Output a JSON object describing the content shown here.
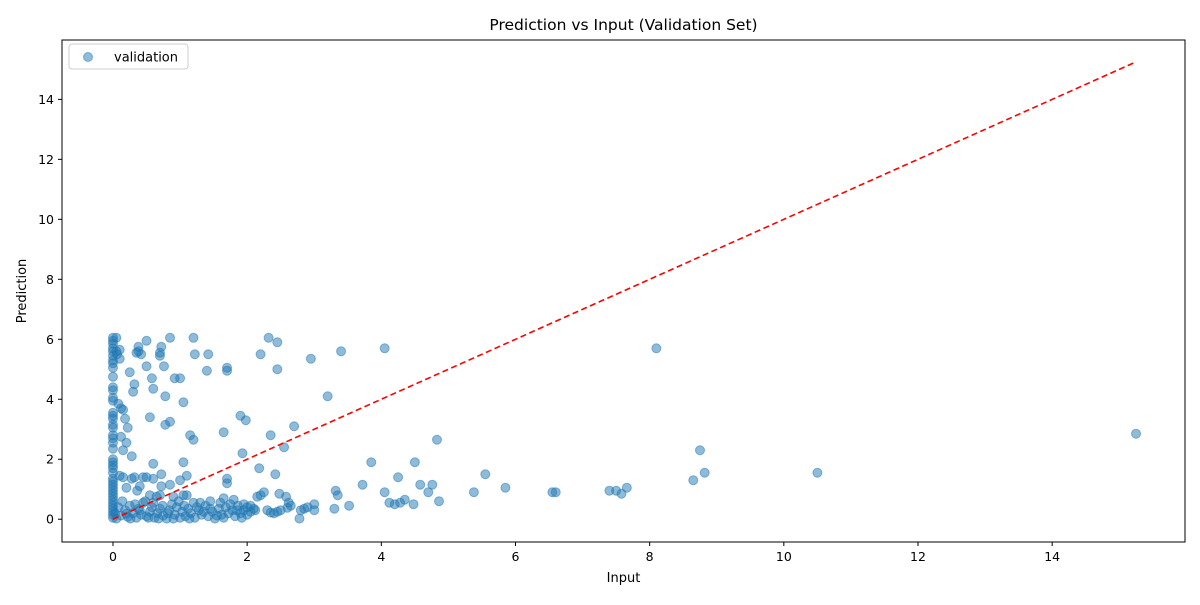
{
  "chart_data": {
    "type": "scatter",
    "title": "Prediction vs Input (Validation Set)",
    "xlabel": "Input",
    "ylabel": "Prediction",
    "xlim": [
      -0.76,
      15.98
    ],
    "ylim": [
      -0.76,
      15.98
    ],
    "xticks": [
      0,
      2,
      4,
      6,
      8,
      10,
      12,
      14
    ],
    "yticks": [
      0,
      2,
      4,
      6,
      8,
      10,
      12,
      14
    ],
    "grid": false,
    "legend": {
      "placement": "top-left",
      "entries": [
        "validation"
      ]
    },
    "series": [
      {
        "name": "validation",
        "color": "#1f77b4",
        "alpha": 0.5,
        "points": [
          [
            0,
            6.05
          ],
          [
            0,
            5.95
          ],
          [
            0,
            5.85
          ],
          [
            0,
            5.7
          ],
          [
            0,
            5.6
          ],
          [
            0,
            5.45
          ],
          [
            0,
            5.3
          ],
          [
            0,
            5.2
          ],
          [
            0,
            5.05
          ],
          [
            0,
            4.75
          ],
          [
            0,
            4.4
          ],
          [
            0,
            4.3
          ],
          [
            0,
            4.05
          ],
          [
            0,
            3.95
          ],
          [
            0,
            3.55
          ],
          [
            0,
            3.45
          ],
          [
            0,
            3.35
          ],
          [
            0,
            3.15
          ],
          [
            0,
            3.05
          ],
          [
            0,
            2.8
          ],
          [
            0,
            2.7
          ],
          [
            0,
            2.55
          ],
          [
            0,
            2.35
          ],
          [
            0,
            2.0
          ],
          [
            0,
            1.9
          ],
          [
            0,
            1.8
          ],
          [
            0,
            1.7
          ],
          [
            0,
            1.55
          ],
          [
            0,
            1.35
          ],
          [
            0,
            1.25
          ],
          [
            0,
            1.15
          ],
          [
            0,
            1.05
          ],
          [
            0,
            0.95
          ],
          [
            0,
            0.85
          ],
          [
            0,
            0.75
          ],
          [
            0,
            0.65
          ],
          [
            0,
            0.55
          ],
          [
            0,
            0.45
          ],
          [
            0,
            0.35
          ],
          [
            0,
            0.25
          ],
          [
            0,
            0.15
          ],
          [
            0,
            0.05
          ],
          [
            0.05,
            6.05
          ],
          [
            0.05,
            5.6
          ],
          [
            0.06,
            5.5
          ],
          [
            0.08,
            3.85
          ],
          [
            0.1,
            5.65
          ],
          [
            0.1,
            5.35
          ],
          [
            0.12,
            3.7
          ],
          [
            0.15,
            3.65
          ],
          [
            0.12,
            2.75
          ],
          [
            0.2,
            2.55
          ],
          [
            0.15,
            2.3
          ],
          [
            0.18,
            3.35
          ],
          [
            0.22,
            3.05
          ],
          [
            0.25,
            4.9
          ],
          [
            0.3,
            4.25
          ],
          [
            0.32,
            4.5
          ],
          [
            0.28,
            2.1
          ],
          [
            0.35,
            5.55
          ],
          [
            0.38,
            5.6
          ],
          [
            0.38,
            5.75
          ],
          [
            0.42,
            5.5
          ],
          [
            0.5,
            5.95
          ],
          [
            0.5,
            5.1
          ],
          [
            0.55,
            3.4
          ],
          [
            0.58,
            4.7
          ],
          [
            0.6,
            4.35
          ],
          [
            0.6,
            1.85
          ],
          [
            0.7,
            5.55
          ],
          [
            0.7,
            5.45
          ],
          [
            0.72,
            5.75
          ],
          [
            0.76,
            5.1
          ],
          [
            0.78,
            4.1
          ],
          [
            0.78,
            3.15
          ],
          [
            0.85,
            3.25
          ],
          [
            0.85,
            6.05
          ],
          [
            0.92,
            4.7
          ],
          [
            1.0,
            4.7
          ],
          [
            1.05,
            3.9
          ],
          [
            1.05,
            1.9
          ],
          [
            1.1,
            1.45
          ],
          [
            1.15,
            2.8
          ],
          [
            1.2,
            2.65
          ],
          [
            1.2,
            6.05
          ],
          [
            1.22,
            5.5
          ],
          [
            1.4,
            4.95
          ],
          [
            1.42,
            5.5
          ],
          [
            1.65,
            2.9
          ],
          [
            1.7,
            5.05
          ],
          [
            1.7,
            4.95
          ],
          [
            1.7,
            1.35
          ],
          [
            1.7,
            1.2
          ],
          [
            1.9,
            3.45
          ],
          [
            1.98,
            3.3
          ],
          [
            1.93,
            2.2
          ],
          [
            2.2,
            5.5
          ],
          [
            2.18,
            1.7
          ],
          [
            2.32,
            6.05
          ],
          [
            2.35,
            2.8
          ],
          [
            2.45,
            5.9
          ],
          [
            2.45,
            5.0
          ],
          [
            2.42,
            1.5
          ],
          [
            2.55,
            2.4
          ],
          [
            2.7,
            3.1
          ],
          [
            2.95,
            5.35
          ],
          [
            3.2,
            4.1
          ],
          [
            3.4,
            5.6
          ],
          [
            3.85,
            1.9
          ],
          [
            4.05,
            5.7
          ],
          [
            4.5,
            1.9
          ],
          [
            4.83,
            2.65
          ],
          [
            5.55,
            1.5
          ],
          [
            8.1,
            5.7
          ],
          [
            8.75,
            2.3
          ],
          [
            8.82,
            1.55
          ],
          [
            10.5,
            1.55
          ],
          [
            15.25,
            2.85
          ],
          [
            0.1,
            1.45
          ],
          [
            0.2,
            1.05
          ],
          [
            0.15,
            1.4
          ],
          [
            0.28,
            1.35
          ],
          [
            0.32,
            1.4
          ],
          [
            0.36,
            0.95
          ],
          [
            0.4,
            1.1
          ],
          [
            0.45,
            1.4
          ],
          [
            0.5,
            1.4
          ],
          [
            0.55,
            0.8
          ],
          [
            0.6,
            1.35
          ],
          [
            0.65,
            0.75
          ],
          [
            0.7,
            0.8
          ],
          [
            0.72,
            1.5
          ],
          [
            0.72,
            1.1
          ],
          [
            0.85,
            1.15
          ],
          [
            0.9,
            0.75
          ],
          [
            1.0,
            1.3
          ],
          [
            1.05,
            0.8
          ],
          [
            1.1,
            0.8
          ],
          [
            1.2,
            0.55
          ],
          [
            1.3,
            0.55
          ],
          [
            1.45,
            0.6
          ],
          [
            1.6,
            0.55
          ],
          [
            1.65,
            0.7
          ],
          [
            1.8,
            0.65
          ],
          [
            1.95,
            0.5
          ],
          [
            2.05,
            0.45
          ],
          [
            2.15,
            0.75
          ],
          [
            2.2,
            0.8
          ],
          [
            2.25,
            0.9
          ],
          [
            2.48,
            0.85
          ],
          [
            2.58,
            0.75
          ],
          [
            2.62,
            0.55
          ],
          [
            2.65,
            0.45
          ],
          [
            2.9,
            0.4
          ],
          [
            3.0,
            0.5
          ],
          [
            3.32,
            0.95
          ],
          [
            3.35,
            0.8
          ],
          [
            3.52,
            0.45
          ],
          [
            3.72,
            1.15
          ],
          [
            4.05,
            0.9
          ],
          [
            4.12,
            0.55
          ],
          [
            4.2,
            0.5
          ],
          [
            4.25,
            1.4
          ],
          [
            4.28,
            0.55
          ],
          [
            4.35,
            0.65
          ],
          [
            4.48,
            0.5
          ],
          [
            4.58,
            1.15
          ],
          [
            4.7,
            0.9
          ],
          [
            4.76,
            1.15
          ],
          [
            4.86,
            0.6
          ],
          [
            5.38,
            0.9
          ],
          [
            5.85,
            1.05
          ],
          [
            6.55,
            0.9
          ],
          [
            6.6,
            0.9
          ],
          [
            7.4,
            0.95
          ],
          [
            7.5,
            0.95
          ],
          [
            7.58,
            0.85
          ],
          [
            7.66,
            1.05
          ],
          [
            8.65,
            1.3
          ],
          [
            0.05,
            0.02
          ],
          [
            0.12,
            0.12
          ],
          [
            0.18,
            0.3
          ],
          [
            0.22,
            0.08
          ],
          [
            0.25,
            0.45
          ],
          [
            0.3,
            0.2
          ],
          [
            0.35,
            0.05
          ],
          [
            0.38,
            0.35
          ],
          [
            0.42,
            0.15
          ],
          [
            0.45,
            0.55
          ],
          [
            0.5,
            0.1
          ],
          [
            0.55,
            0.25
          ],
          [
            0.58,
            0.4
          ],
          [
            0.62,
            0.05
          ],
          [
            0.66,
            0.2
          ],
          [
            0.7,
            0.35
          ],
          [
            0.75,
            0.12
          ],
          [
            0.8,
            0.02
          ],
          [
            0.84,
            0.3
          ],
          [
            0.88,
            0.5
          ],
          [
            0.92,
            0.15
          ],
          [
            0.95,
            0.4
          ],
          [
            1.0,
            0.05
          ],
          [
            1.03,
            0.25
          ],
          [
            1.08,
            0.1
          ],
          [
            1.12,
            0.35
          ],
          [
            1.16,
            0.2
          ],
          [
            1.22,
            0.05
          ],
          [
            1.28,
            0.3
          ],
          [
            1.32,
            0.15
          ],
          [
            1.38,
            0.45
          ],
          [
            1.42,
            0.1
          ],
          [
            1.48,
            0.25
          ],
          [
            1.52,
            0.02
          ],
          [
            1.58,
            0.35
          ],
          [
            1.62,
            0.15
          ],
          [
            1.68,
            0.4
          ],
          [
            1.72,
            0.2
          ],
          [
            1.78,
            0.3
          ],
          [
            1.82,
            0.1
          ],
          [
            1.86,
            0.45
          ],
          [
            1.9,
            0.2
          ],
          [
            1.95,
            0.3
          ],
          [
            2.0,
            0.15
          ],
          [
            2.05,
            0.25
          ],
          [
            2.1,
            0.35
          ],
          [
            2.3,
            0.3
          ],
          [
            2.35,
            0.22
          ],
          [
            2.45,
            0.25
          ],
          [
            2.5,
            0.3
          ],
          [
            2.6,
            0.38
          ],
          [
            2.78,
            0.02
          ],
          [
            2.8,
            0.3
          ],
          [
            2.85,
            0.35
          ],
          [
            3.0,
            0.3
          ],
          [
            3.3,
            0.35
          ],
          [
            0.03,
            0.2
          ],
          [
            0.08,
            0.4
          ],
          [
            0.14,
            0.6
          ],
          [
            0.2,
            0.18
          ],
          [
            0.26,
            0.02
          ],
          [
            0.33,
            0.5
          ],
          [
            0.4,
            0.3
          ],
          [
            0.48,
            0.6
          ],
          [
            0.53,
            0.05
          ],
          [
            0.6,
            0.55
          ],
          [
            0.68,
            0.02
          ],
          [
            0.74,
            0.45
          ],
          [
            0.82,
            0.2
          ],
          [
            0.9,
            0.02
          ],
          [
            0.98,
            0.6
          ],
          [
            1.06,
            0.45
          ],
          [
            1.14,
            0.02
          ],
          [
            1.25,
            0.4
          ],
          [
            1.35,
            0.25
          ],
          [
            1.45,
            0.35
          ],
          [
            1.55,
            0.12
          ],
          [
            1.65,
            0.05
          ],
          [
            1.75,
            0.5
          ],
          [
            1.85,
            0.3
          ],
          [
            1.92,
            0.05
          ],
          [
            2.0,
            0.4
          ],
          [
            2.12,
            0.3
          ],
          [
            2.4,
            0.2
          ]
        ]
      }
    ],
    "reference_line": {
      "style": "dashed",
      "color": "#ff0000",
      "from": [
        0,
        0
      ],
      "to": [
        15.25,
        15.25
      ]
    }
  }
}
